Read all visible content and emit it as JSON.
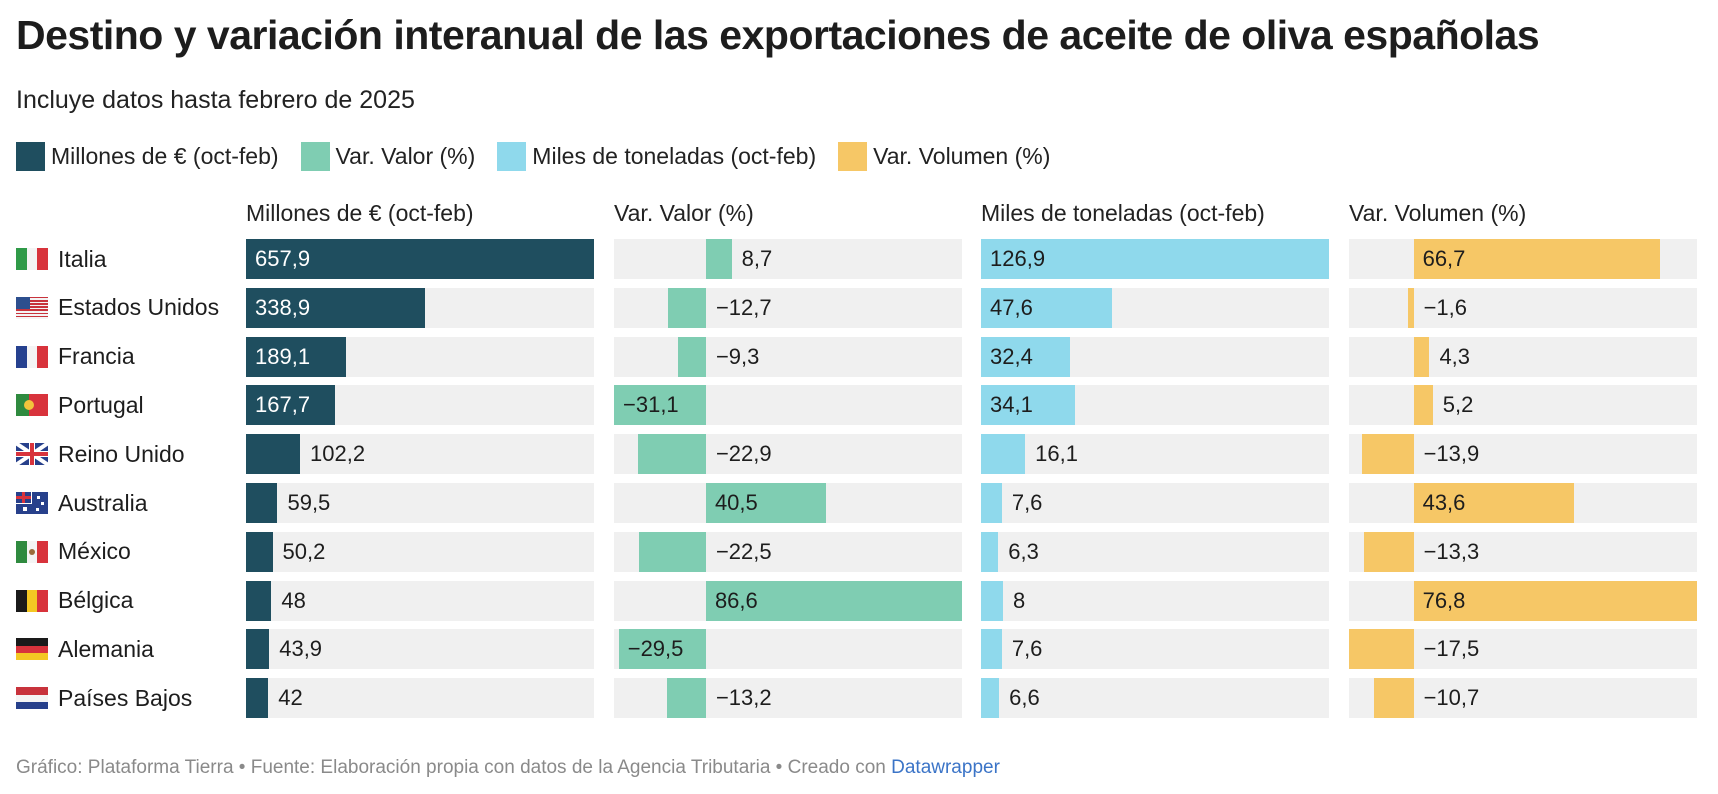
{
  "title": "Destino y variación interanual de las exportaciones de aceite de oliva españolas",
  "subtitle": "Incluye datos hasta febrero de 2025",
  "legend": [
    {
      "label": "Millones de € (oct-feb)",
      "color": "#1f4e5f"
    },
    {
      "label": "Var. Valor (%)",
      "color": "#7fcdb2"
    },
    {
      "label": "Miles de toneladas (oct-feb)",
      "color": "#8fd9ec"
    },
    {
      "label": "Var. Volumen (%)",
      "color": "#f6c766"
    }
  ],
  "footer": {
    "text": "Gráfico: Plataforma Tierra • Fuente: Elaboración propia con datos de la Agencia Tributaria • Creado con ",
    "link": "Datawrapper"
  },
  "flags": [
    "flag-italy-icon",
    "flag-usa-icon",
    "flag-france-icon",
    "flag-portugal-icon",
    "flag-uk-icon",
    "flag-australia-icon",
    "flag-mexico-icon",
    "flag-belgium-icon",
    "flag-germany-icon",
    "flag-netherlands-icon"
  ],
  "chart_data": {
    "type": "table",
    "categories": [
      "Italia",
      "Estados Unidos",
      "Francia",
      "Portugal",
      "Reino Unido",
      "Australia",
      "México",
      "Bélgica",
      "Alemania",
      "Países Bajos"
    ],
    "series": [
      {
        "name": "Millones de € (oct-feb)",
        "color": "#1f4e5f",
        "values": [
          657.9,
          338.9,
          189.1,
          167.7,
          102.2,
          59.5,
          50.2,
          48,
          43.9,
          42
        ],
        "labels": [
          "657,9",
          "338,9",
          "189,1",
          "167,7",
          "102,2",
          "59,5",
          "50,2",
          "48",
          "43,9",
          "42"
        ],
        "range": [
          0,
          657.9
        ]
      },
      {
        "name": "Var. Valor (%)",
        "color": "#7fcdb2",
        "values": [
          8.7,
          -12.7,
          -9.3,
          -31.1,
          -22.9,
          40.5,
          -22.5,
          86.6,
          -29.5,
          -13.2
        ],
        "labels": [
          "8,7",
          "−12,7",
          "−9,3",
          "−31,1",
          "−22,9",
          "40,5",
          "−22,5",
          "86,6",
          "−29,5",
          "−13,2"
        ],
        "range": [
          -31.1,
          86.6
        ]
      },
      {
        "name": "Miles de toneladas (oct-feb)",
        "color": "#8fd9ec",
        "values": [
          126.9,
          47.6,
          32.4,
          34.1,
          16.1,
          7.6,
          6.3,
          8,
          7.6,
          6.6
        ],
        "labels": [
          "126,9",
          "47,6",
          "32,4",
          "34,1",
          "16,1",
          "7,6",
          "6,3",
          "8",
          "7,6",
          "6,6"
        ],
        "range": [
          0,
          126.9
        ]
      },
      {
        "name": "Var. Volumen (%)",
        "color": "#f6c766",
        "values": [
          66.7,
          -1.6,
          4.3,
          5.2,
          -13.9,
          43.6,
          -13.3,
          76.8,
          -17.5,
          -10.7
        ],
        "labels": [
          "66,7",
          "−1,6",
          "4,3",
          "5,2",
          "−13,9",
          "43,6",
          "−13,3",
          "76,8",
          "−17,5",
          "−10,7"
        ],
        "range": [
          -17.5,
          76.8
        ]
      }
    ]
  }
}
